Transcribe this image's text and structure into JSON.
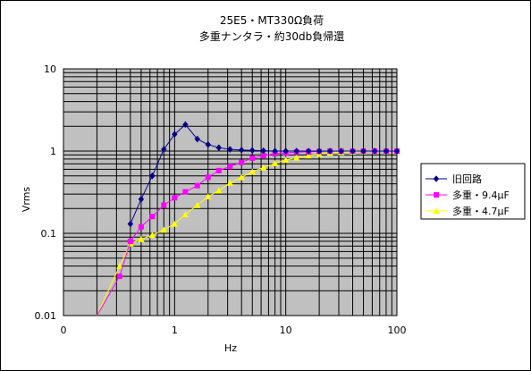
{
  "chart_data": {
    "type": "line",
    "title": "25E5・MT330Ω負荷",
    "subtitle": "多重ナンタラ・約30db負帰還",
    "xlabel": "Hz",
    "ylabel": "Vrms",
    "x_scale": "log",
    "y_scale": "log",
    "xlim": [
      0.1,
      100
    ],
    "ylim": [
      0.01,
      10
    ],
    "x_tick_labels": [
      "0",
      "1",
      "10",
      "100"
    ],
    "y_tick_labels": [
      "10",
      "1",
      "0.1",
      "0.01"
    ],
    "grid": true,
    "legend_position": "right",
    "series": [
      {
        "name": "旧回路",
        "color": "#00008b",
        "marker": "diamond",
        "x": [
          0.4,
          0.5,
          0.63,
          0.8,
          1.0,
          1.25,
          1.6,
          2.0,
          2.5,
          3.15,
          4.0,
          5.0,
          6.3,
          8.0,
          10,
          12.5,
          16,
          20,
          25,
          31.5,
          40,
          50,
          63,
          80,
          100
        ],
        "y": [
          0.13,
          0.26,
          0.5,
          1.05,
          1.6,
          2.1,
          1.4,
          1.2,
          1.1,
          1.05,
          1.03,
          1.02,
          1.01,
          1.0,
          1.0,
          1.0,
          1.0,
          1.0,
          1.0,
          1.0,
          1.0,
          1.0,
          1.0,
          1.0,
          1.0
        ]
      },
      {
        "name": "多重・9.4μF",
        "color": "#ff00ff",
        "marker": "square",
        "x": [
          0.2,
          0.32,
          0.4,
          0.5,
          0.63,
          0.8,
          1.0,
          1.25,
          1.6,
          2.0,
          2.5,
          3.15,
          4.0,
          5.0,
          6.3,
          8.0,
          10,
          12.5,
          16,
          20,
          25,
          31.5,
          40,
          50,
          63,
          80,
          100
        ],
        "y": [
          0.01,
          0.03,
          0.08,
          0.12,
          0.16,
          0.22,
          0.27,
          0.32,
          0.38,
          0.48,
          0.58,
          0.65,
          0.73,
          0.82,
          0.88,
          0.93,
          0.95,
          0.97,
          0.98,
          0.99,
          1.0,
          1.0,
          1.0,
          1.0,
          1.0,
          1.0,
          1.0
        ]
      },
      {
        "name": "多重・4.7μF",
        "color": "#ffff00",
        "marker": "triangle",
        "x": [
          0.2,
          0.32,
          0.4,
          0.5,
          0.63,
          0.8,
          1.0,
          1.25,
          1.6,
          2.0,
          2.5,
          3.15,
          4.0,
          5.0,
          6.3,
          8.0,
          10,
          12.5,
          16,
          20,
          25,
          31.5,
          40,
          50,
          63,
          80,
          100
        ],
        "y": [
          0.01,
          0.04,
          0.075,
          0.085,
          0.095,
          0.11,
          0.13,
          0.17,
          0.22,
          0.28,
          0.33,
          0.41,
          0.48,
          0.56,
          0.63,
          0.71,
          0.78,
          0.83,
          0.88,
          0.92,
          0.95,
          0.97,
          0.98,
          0.99,
          1.0,
          1.0,
          1.0
        ]
      }
    ]
  }
}
